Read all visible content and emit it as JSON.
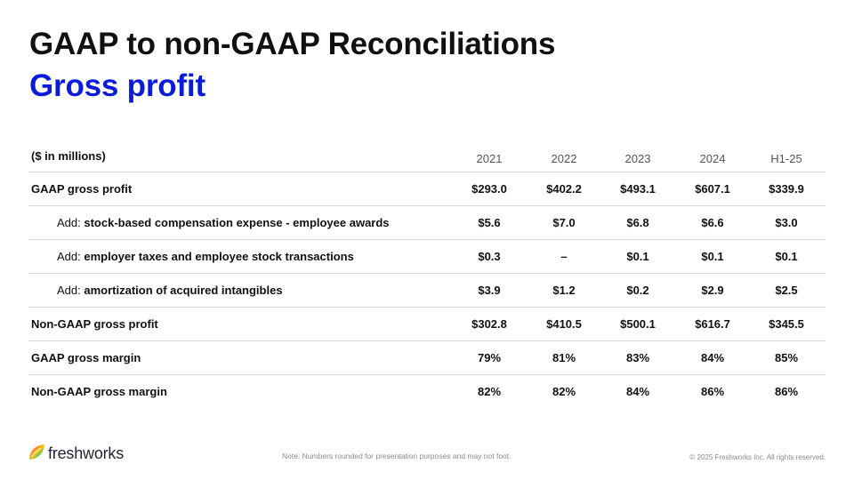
{
  "slide": {
    "title": "GAAP to non-GAAP Reconciliations",
    "subtitle": "Gross profit"
  },
  "table": {
    "unit_label": "($ in millions)",
    "columns": [
      "2021",
      "2022",
      "2023",
      "2024",
      "H1-25"
    ],
    "rows": [
      {
        "prefix": "",
        "label": "GAAP gross profit",
        "values": [
          "$293.0",
          "$402.2",
          "$493.1",
          "$607.1",
          "$339.9"
        ]
      },
      {
        "prefix": "Add: ",
        "label": "stock-based compensation expense - employee awards",
        "values": [
          "$5.6",
          "$7.0",
          "$6.8",
          "$6.6",
          "$3.0"
        ]
      },
      {
        "prefix": "Add: ",
        "label": "employer taxes and employee stock transactions",
        "values": [
          "$0.3",
          "–",
          "$0.1",
          "$0.1",
          "$0.1"
        ]
      },
      {
        "prefix": "Add: ",
        "label": "amortization of acquired intangibles",
        "values": [
          "$3.9",
          "$1.2",
          "$0.2",
          "$2.9",
          "$2.5"
        ]
      },
      {
        "prefix": "",
        "label": "Non-GAAP gross profit",
        "values": [
          "$302.8",
          "$410.5",
          "$500.1",
          "$616.7",
          "$345.5"
        ]
      },
      {
        "prefix": "",
        "label": "GAAP gross margin",
        "values": [
          "79%",
          "81%",
          "83%",
          "84%",
          "85%"
        ]
      },
      {
        "prefix": "",
        "label": "Non-GAAP gross margin",
        "values": [
          "82%",
          "82%",
          "84%",
          "86%",
          "86%"
        ]
      }
    ]
  },
  "footer": {
    "logo_text": "freshworks",
    "note": "Note: Numbers rounded for presentation purposes and may not foot.",
    "copyright": "© 2025 Freshworks Inc. All rights reserved."
  },
  "colors": {
    "title": "#111111",
    "subtitle": "#0b1bdc",
    "divider": "#d9d9d9",
    "footer_text": "#8a8a8a"
  },
  "icons": {
    "logo": "freshworks-logo-icon"
  }
}
